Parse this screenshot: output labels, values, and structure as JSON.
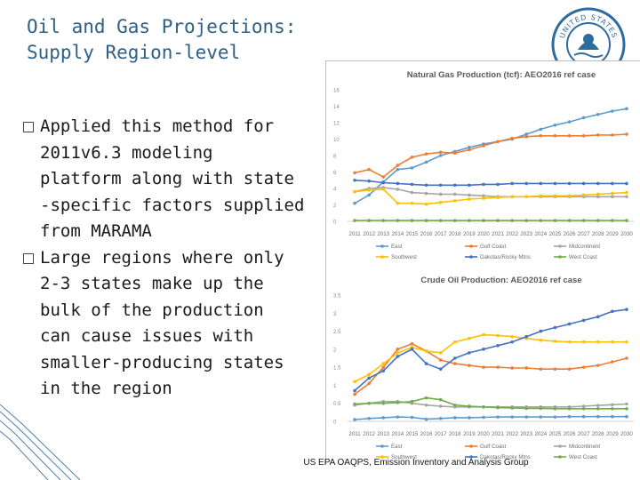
{
  "slide": {
    "title_lines": [
      "Oil and Gas Projections:",
      "Supply Region-level"
    ],
    "bullets": [
      [
        "Applied this method for",
        "2011v6.3 modeling",
        "platform along with state",
        "-specific factors supplied",
        "from MARAMA"
      ],
      [
        "Large regions where only",
        "2-3 states make up the",
        "bulk of the production",
        "can cause issues with",
        "smaller-producing states",
        "in the region"
      ]
    ],
    "footer": "US EPA OAQPS, Emission Inventory and Analysis Group",
    "seal_text": "UNITED STATES"
  },
  "chart_data": [
    {
      "type": "line",
      "title": "Natural Gas Production (tcf): AEO2016 ref case",
      "categories": [
        "2011",
        "2012",
        "2013",
        "2014",
        "2015",
        "2016",
        "2017",
        "2018",
        "2019",
        "2020",
        "2021",
        "2022",
        "2023",
        "2024",
        "2025",
        "2026",
        "2027",
        "2028",
        "2029",
        "2030"
      ],
      "ylim": [
        0,
        16
      ],
      "yticks": [
        0,
        2,
        4,
        6,
        8,
        10,
        12,
        14,
        16
      ],
      "grid": false,
      "legend_position": "bottom",
      "series": [
        {
          "name": "East",
          "color": "#5b9bd5",
          "values": [
            2.2,
            3.2,
            4.8,
            6.3,
            6.5,
            7.2,
            8.0,
            8.5,
            9.0,
            9.4,
            9.7,
            10.0,
            10.6,
            11.2,
            11.7,
            12.1,
            12.6,
            13.0,
            13.4,
            13.7
          ]
        },
        {
          "name": "Gulf Coast",
          "color": "#ed7d31",
          "values": [
            5.9,
            6.3,
            5.4,
            6.8,
            7.8,
            8.2,
            8.4,
            8.3,
            8.7,
            9.2,
            9.7,
            10.1,
            10.3,
            10.4,
            10.4,
            10.4,
            10.4,
            10.5,
            10.5,
            10.6
          ]
        },
        {
          "name": "Midcontinent",
          "color": "#a5a5a5",
          "values": [
            3.6,
            4.0,
            4.1,
            3.9,
            3.5,
            3.4,
            3.3,
            3.3,
            3.2,
            3.1,
            3.0,
            3.0,
            3.0,
            3.0,
            3.0,
            3.0,
            3.0,
            3.0,
            3.0,
            3.0
          ]
        },
        {
          "name": "Southwest",
          "color": "#ffc000",
          "values": [
            3.6,
            3.8,
            3.9,
            2.2,
            2.2,
            2.1,
            2.3,
            2.5,
            2.7,
            2.8,
            2.9,
            3.0,
            3.0,
            3.1,
            3.1,
            3.1,
            3.2,
            3.3,
            3.4,
            3.5
          ]
        },
        {
          "name": "Dakotas/Rocky Mtns",
          "color": "#4472c4",
          "values": [
            5.0,
            4.9,
            4.7,
            4.6,
            4.5,
            4.4,
            4.4,
            4.4,
            4.4,
            4.5,
            4.5,
            4.6,
            4.6,
            4.6,
            4.6,
            4.6,
            4.6,
            4.6,
            4.6,
            4.6
          ]
        },
        {
          "name": "West Coast",
          "color": "#70ad47",
          "values": [
            0.1,
            0.1,
            0.1,
            0.1,
            0.1,
            0.1,
            0.1,
            0.1,
            0.1,
            0.1,
            0.1,
            0.1,
            0.1,
            0.1,
            0.1,
            0.1,
            0.1,
            0.1,
            0.1,
            0.1
          ]
        }
      ]
    },
    {
      "type": "line",
      "title": "Crude Oil Production: AEO2016 ref case",
      "categories": [
        "2011",
        "2012",
        "2013",
        "2014",
        "2015",
        "2016",
        "2017",
        "2018",
        "2019",
        "2020",
        "2021",
        "2022",
        "2023",
        "2024",
        "2025",
        "2026",
        "2027",
        "2028",
        "2029",
        "2030"
      ],
      "ylim": [
        0,
        3.5
      ],
      "yticks": [
        0,
        0.5,
        1,
        1.5,
        2,
        2.5,
        3,
        3.5
      ],
      "grid": false,
      "legend_position": "bottom",
      "series": [
        {
          "name": "East",
          "color": "#5b9bd5",
          "values": [
            0.05,
            0.08,
            0.1,
            0.12,
            0.11,
            0.06,
            0.08,
            0.1,
            0.1,
            0.11,
            0.12,
            0.12,
            0.12,
            0.12,
            0.12,
            0.13,
            0.13,
            0.13,
            0.13,
            0.13
          ]
        },
        {
          "name": "Gulf Coast",
          "color": "#ed7d31",
          "values": [
            0.75,
            1.05,
            1.5,
            2.0,
            2.15,
            1.95,
            1.7,
            1.6,
            1.55,
            1.5,
            1.5,
            1.48,
            1.48,
            1.45,
            1.45,
            1.45,
            1.5,
            1.55,
            1.65,
            1.75
          ]
        },
        {
          "name": "Midcontinent",
          "color": "#a5a5a5",
          "values": [
            0.45,
            0.5,
            0.55,
            0.55,
            0.5,
            0.45,
            0.42,
            0.4,
            0.4,
            0.4,
            0.4,
            0.4,
            0.4,
            0.4,
            0.4,
            0.4,
            0.42,
            0.44,
            0.46,
            0.48
          ]
        },
        {
          "name": "Southwest",
          "color": "#ffc000",
          "values": [
            1.1,
            1.3,
            1.6,
            1.9,
            2.05,
            1.95,
            1.9,
            2.2,
            2.3,
            2.4,
            2.38,
            2.35,
            2.3,
            2.25,
            2.22,
            2.2,
            2.2,
            2.2,
            2.2,
            2.2
          ]
        },
        {
          "name": "Dakotas/Rocky Mtns",
          "color": "#4472c4",
          "values": [
            0.85,
            1.2,
            1.4,
            1.8,
            2.0,
            1.6,
            1.45,
            1.75,
            1.9,
            2.0,
            2.1,
            2.2,
            2.35,
            2.5,
            2.6,
            2.7,
            2.8,
            2.9,
            3.05,
            3.1
          ]
        },
        {
          "name": "West Coast",
          "color": "#70ad47",
          "values": [
            0.48,
            0.5,
            0.5,
            0.52,
            0.55,
            0.65,
            0.6,
            0.45,
            0.42,
            0.4,
            0.38,
            0.37,
            0.36,
            0.36,
            0.35,
            0.35,
            0.35,
            0.35,
            0.35,
            0.35
          ]
        }
      ]
    }
  ]
}
